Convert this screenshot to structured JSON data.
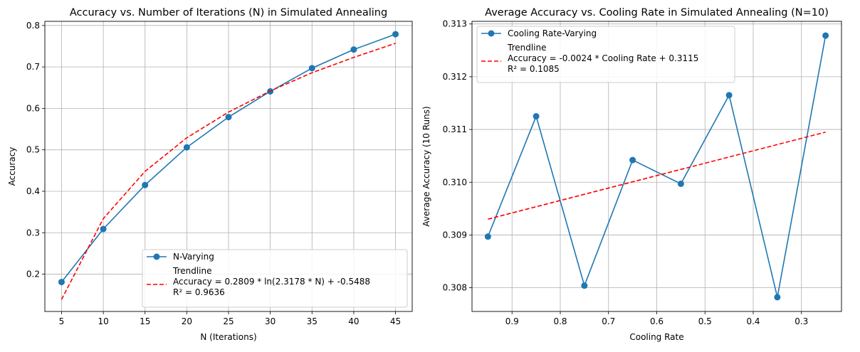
{
  "chart_data": [
    {
      "type": "line",
      "title": "Accuracy vs. Number of Iterations (N) in Simulated Annealing",
      "xlabel": "N (Iterations)",
      "ylabel": "Accuracy",
      "xlim": [
        3.0,
        47.0
      ],
      "ylim": [
        0.11,
        0.81
      ],
      "xticks": [
        5,
        10,
        15,
        20,
        25,
        30,
        35,
        40,
        45
      ],
      "yticks": [
        0.2,
        0.3,
        0.4,
        0.5,
        0.6,
        0.7,
        0.8
      ],
      "grid": true,
      "legend_position": "lower-right",
      "series": [
        {
          "name": "N-Varying",
          "color": "#1f77b4",
          "style": "solid",
          "marker": "circle",
          "x": [
            5,
            10,
            15,
            20,
            25,
            30,
            35,
            40,
            45
          ],
          "y": [
            0.181,
            0.309,
            0.415,
            0.506,
            0.579,
            0.641,
            0.697,
            0.742,
            0.779
          ]
        },
        {
          "name": "Trendline\nAccuracy = 0.2809 * ln(2.3178 * N) + -0.5488\nR² = 0.9636",
          "color": "#ff0000",
          "style": "dashed",
          "marker": "none",
          "x": [
            5,
            10,
            15,
            20,
            25,
            30,
            35,
            40,
            45
          ],
          "y": [
            0.139,
            0.334,
            0.448,
            0.529,
            0.591,
            0.642,
            0.686,
            0.723,
            0.757
          ]
        }
      ]
    },
    {
      "type": "line",
      "title": "Average Accuracy vs. Cooling Rate in Simulated Annealing (N=10)",
      "xlabel": "Cooling Rate",
      "ylabel": "Average Accuracy (10 Runs)",
      "xlim": [
        0.983,
        0.217
      ],
      "ylim": [
        0.30755,
        0.31305
      ],
      "xticks": [
        0.9,
        0.8,
        0.7,
        0.6,
        0.5,
        0.4,
        0.3
      ],
      "yticks": [
        0.308,
        0.309,
        0.31,
        0.311,
        0.312,
        0.313
      ],
      "ytick_labels": [
        "0.308",
        "0.309",
        "0.310",
        "0.311",
        "0.312",
        "0.313"
      ],
      "grid": true,
      "legend_position": "upper-left",
      "series": [
        {
          "name": "Cooling Rate-Varying",
          "color": "#1f77b4",
          "style": "solid",
          "marker": "circle",
          "x": [
            0.95,
            0.85,
            0.75,
            0.65,
            0.55,
            0.45,
            0.35,
            0.25
          ],
          "y": [
            0.30897,
            0.31125,
            0.30804,
            0.31042,
            0.30997,
            0.31165,
            0.30782,
            0.31278
          ]
        },
        {
          "name": "Trendline\nAccuracy = -0.0024 * Cooling Rate + 0.3115\nR² = 0.1085",
          "color": "#ff0000",
          "style": "dashed",
          "marker": "none",
          "x": [
            0.95,
            0.25
          ],
          "y": [
            0.3093,
            0.31095
          ]
        }
      ]
    }
  ]
}
